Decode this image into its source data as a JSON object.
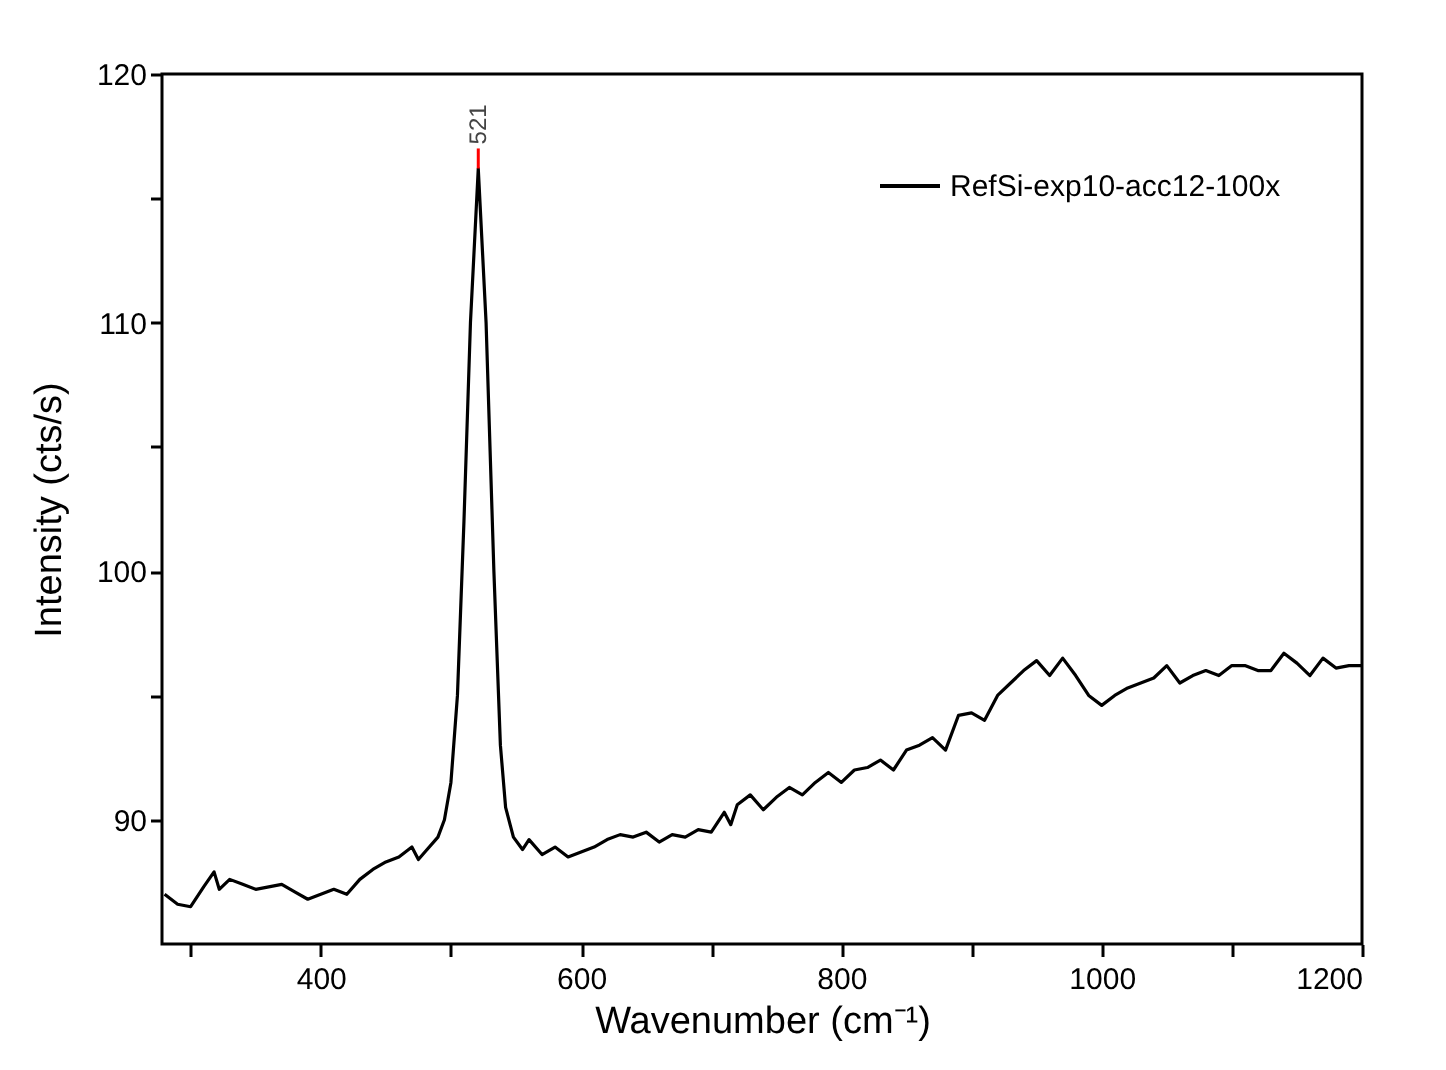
{
  "chart_data": {
    "type": "line",
    "xlabel": "Wavenumber (cm⁻¹)",
    "ylabel": "Intensity (cts/s)",
    "x": [
      280,
      290,
      300,
      310,
      318,
      322,
      330,
      340,
      350,
      360,
      370,
      380,
      390,
      400,
      410,
      420,
      430,
      440,
      450,
      460,
      470,
      475,
      480,
      490,
      495,
      500,
      505,
      510,
      515,
      521,
      527,
      533,
      538,
      542,
      548,
      555,
      560,
      570,
      580,
      590,
      600,
      610,
      620,
      630,
      640,
      650,
      660,
      670,
      680,
      690,
      700,
      710,
      715,
      720,
      730,
      740,
      750,
      760,
      770,
      780,
      790,
      800,
      810,
      820,
      830,
      840,
      850,
      860,
      870,
      880,
      890,
      900,
      910,
      920,
      930,
      940,
      950,
      960,
      970,
      980,
      990,
      1000,
      1010,
      1020,
      1030,
      1040,
      1050,
      1060,
      1070,
      1080,
      1090,
      1100,
      1110,
      1120,
      1130,
      1140,
      1150,
      1160,
      1170,
      1180,
      1190,
      1200
    ],
    "series": [
      {
        "name": "RefSi-exp10-acc12-100x",
        "color": "#000000",
        "values": [
          87.0,
          86.6,
          86.5,
          87.3,
          87.9,
          87.2,
          87.6,
          87.4,
          87.2,
          87.3,
          87.4,
          87.1,
          86.8,
          87.0,
          87.2,
          87.0,
          87.6,
          88.0,
          88.3,
          88.5,
          88.9,
          88.4,
          88.7,
          89.3,
          90.0,
          91.5,
          95.0,
          102,
          110,
          116.2,
          110,
          100,
          93,
          90.5,
          89.3,
          88.8,
          89.2,
          88.6,
          88.9,
          88.5,
          88.7,
          88.9,
          89.2,
          89.4,
          89.3,
          89.5,
          89.1,
          89.4,
          89.3,
          89.6,
          89.5,
          90.3,
          89.8,
          90.6,
          91.0,
          90.4,
          90.9,
          91.3,
          91.0,
          91.5,
          91.9,
          91.5,
          92.0,
          92.1,
          92.4,
          92.0,
          92.8,
          93.0,
          93.3,
          92.8,
          94.2,
          94.3,
          94.0,
          95.0,
          95.5,
          96.0,
          96.4,
          95.8,
          96.5,
          95.8,
          95.0,
          94.6,
          95.0,
          95.3,
          95.5,
          95.7,
          96.2,
          95.5,
          95.8,
          96.0,
          95.8,
          96.2,
          96.2,
          96.0,
          96.0,
          96.7,
          96.3,
          95.8,
          96.5,
          96.1,
          96.2,
          96.2
        ]
      }
    ],
    "xlim": [
      278,
      1200
    ],
    "ylim": [
      85,
      120
    ],
    "xticks": [
      {
        "value": 300,
        "label": null
      },
      400,
      {
        "value": 500,
        "label": null
      },
      600,
      {
        "value": 700,
        "label": null
      },
      800,
      {
        "value": 900,
        "label": null
      },
      1000,
      {
        "value": 1100,
        "label": null
      },
      1200
    ],
    "yticks": [
      90,
      {
        "value": 95,
        "label": null
      },
      100,
      {
        "value": 105,
        "label": null
      },
      110,
      {
        "value": 115,
        "label": null
      },
      120
    ],
    "annotations": [
      {
        "text": "521",
        "x": 521,
        "y": 116.2
      }
    ],
    "legend": "top right",
    "line_style": "solid"
  }
}
